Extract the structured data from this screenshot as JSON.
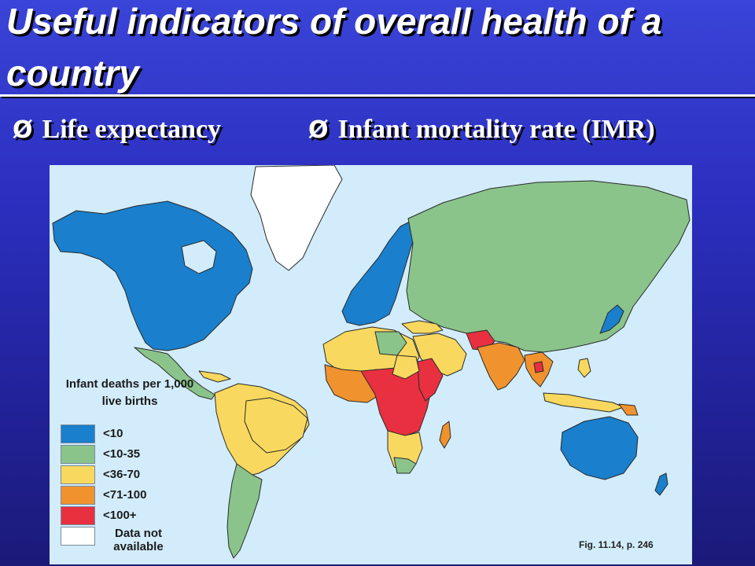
{
  "slide": {
    "title": "Useful indicators of overall health of a country",
    "bullets": [
      {
        "marker": "Ø",
        "text": "Life expectancy"
      },
      {
        "marker": "Ø",
        "text": "Infant mortality rate (IMR)"
      }
    ]
  },
  "map": {
    "legend_title": "Infant deaths per 1,000 live births",
    "legend": [
      {
        "label": "<10",
        "color": "#1a7fcc"
      },
      {
        "label": "<10-35",
        "color": "#8ac48a"
      },
      {
        "label": "<36-70",
        "color": "#f8d85e"
      },
      {
        "label": "<71-100",
        "color": "#f0932e"
      },
      {
        "label": "<100+",
        "color": "#e83040"
      },
      {
        "label": "Data not available",
        "color": "#ffffff"
      }
    ],
    "caption": "Fig. 11.14, p. 246",
    "colors": {
      "ocean": "#d2ecfb",
      "border": "#2a2a2a"
    }
  }
}
